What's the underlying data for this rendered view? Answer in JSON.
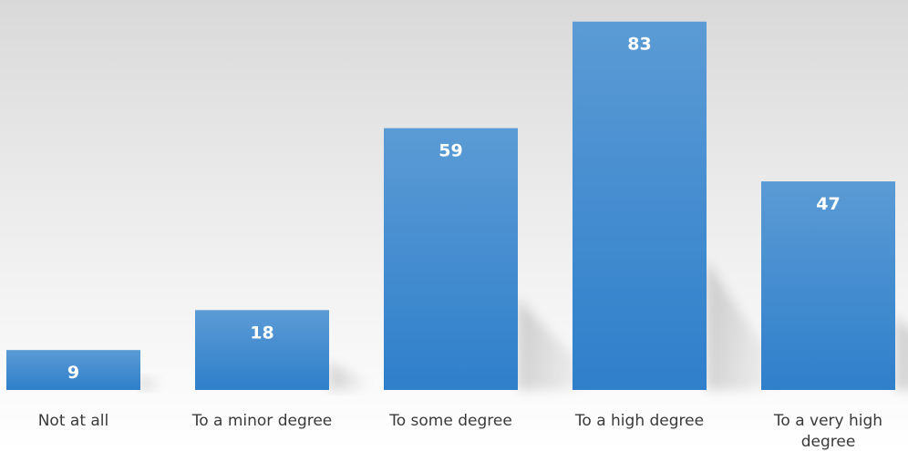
{
  "chart_data": {
    "type": "bar",
    "categories": [
      [
        "Not at all"
      ],
      [
        "To a minor degree"
      ],
      [
        "To some degree"
      ],
      [
        "To a high degree"
      ],
      [
        "To a very high",
        "degree"
      ]
    ],
    "values": [
      9,
      18,
      59,
      83,
      47
    ],
    "ylim": [
      0,
      85
    ],
    "grid": false,
    "legend": "none",
    "data_labels": true,
    "title": "",
    "xlabel": "",
    "ylabel": ""
  },
  "colors": {
    "bar_top": "#5b9bd5",
    "bar_bottom": "#2f7fcb",
    "label_text": "#ffffff",
    "axis_text": "#3a3a3a"
  }
}
